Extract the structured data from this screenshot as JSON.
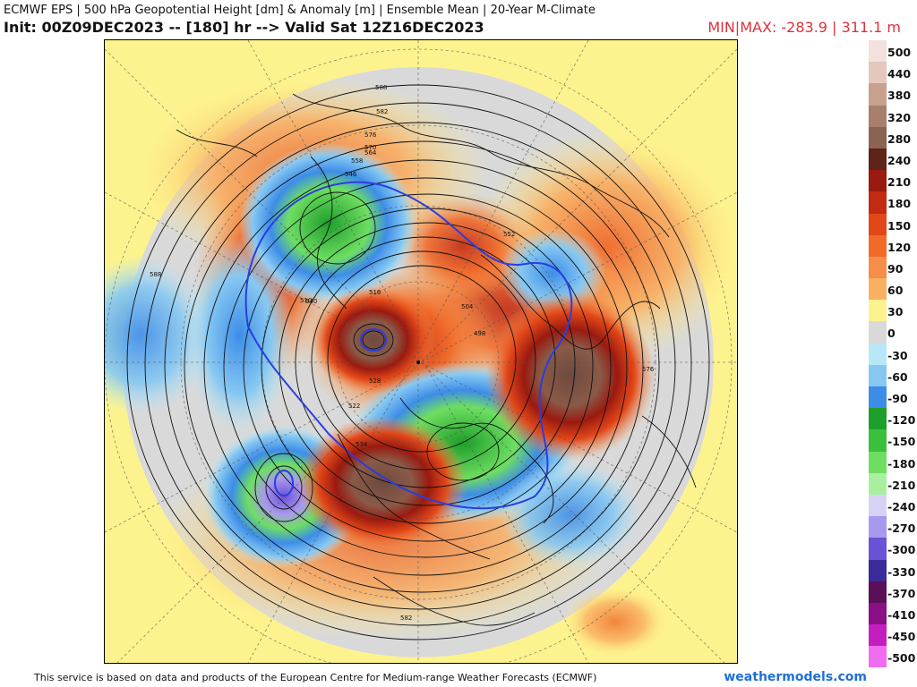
{
  "header": {
    "title_line1": "ECMWF EPS | 500 hPa Geopotential Height [dm] & Anomaly [m] | Ensemble Mean | 20-Year M-Climate",
    "title_line2": "Init: 00Z09DEC2023 -- [180] hr --> Valid Sat 12Z16DEC2023",
    "minmax": "MIN|MAX: -283.9 | 311.1 m"
  },
  "colorbar": {
    "levels": [
      {
        "label": "500",
        "color": "#f2e1dc"
      },
      {
        "label": "440",
        "color": "#e4c8bd"
      },
      {
        "label": "380",
        "color": "#c8a08e"
      },
      {
        "label": "320",
        "color": "#a87f6d"
      },
      {
        "label": "280",
        "color": "#8a6353"
      },
      {
        "label": "240",
        "color": "#5e2418"
      },
      {
        "label": "210",
        "color": "#9a1a10"
      },
      {
        "label": "180",
        "color": "#c22a12"
      },
      {
        "label": "150",
        "color": "#e24718"
      },
      {
        "label": "120",
        "color": "#f06a2a"
      },
      {
        "label": "90",
        "color": "#f58e48"
      },
      {
        "label": "60",
        "color": "#f9b063"
      },
      {
        "label": "30",
        "color": "#fdf38e"
      },
      {
        "label": "0",
        "color": "#d9d9d9"
      },
      {
        "label": "-30",
        "color": "#b8e8f8"
      },
      {
        "label": "-60",
        "color": "#86c8f2"
      },
      {
        "label": "-90",
        "color": "#3d8de8"
      },
      {
        "label": "-120",
        "color": "#1e9e2a"
      },
      {
        "label": "-150",
        "color": "#3ac13c"
      },
      {
        "label": "-180",
        "color": "#6ede62"
      },
      {
        "label": "-210",
        "color": "#a8f0a0"
      },
      {
        "label": "-240",
        "color": "#d6d2f6"
      },
      {
        "label": "-270",
        "color": "#a898ee"
      },
      {
        "label": "-300",
        "color": "#6a52d6"
      },
      {
        "label": "-330",
        "color": "#3a2a9a"
      },
      {
        "label": "-370",
        "color": "#5a1058"
      },
      {
        "label": "-410",
        "color": "#8a0e86"
      },
      {
        "label": "-450",
        "color": "#c41ec0"
      },
      {
        "label": "-500",
        "color": "#f06cf0"
      }
    ]
  },
  "map": {
    "contour_labels": [
      "588",
      "582",
      "576",
      "570",
      "564",
      "558",
      "552",
      "546",
      "540",
      "534",
      "528",
      "522",
      "516",
      "510",
      "504",
      "498"
    ]
  },
  "footer": {
    "credit": "This service is based on data and products of the European Centre for Medium-range Weather Forecasts (ECMWF)",
    "brand": "weathermodels.com"
  }
}
